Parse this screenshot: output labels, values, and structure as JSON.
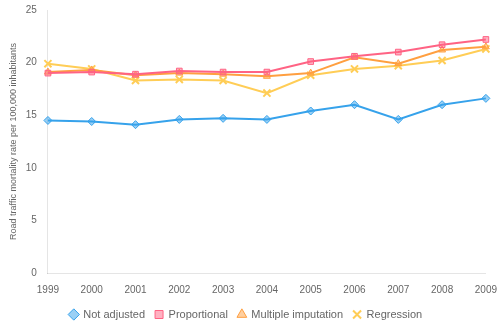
{
  "chart_data": {
    "type": "line",
    "categories": [
      1999,
      2000,
      2001,
      2002,
      2003,
      2004,
      2005,
      2006,
      2007,
      2008,
      2009
    ],
    "series": [
      {
        "name": "Not adjusted",
        "marker": "diamond",
        "values": [
          14.5,
          14.4,
          14.1,
          14.6,
          14.7,
          14.6,
          15.4,
          16.0,
          14.6,
          16.0,
          16.6
        ]
      },
      {
        "name": "Proportional",
        "marker": "square",
        "values": [
          19.0,
          19.1,
          18.9,
          19.2,
          19.1,
          19.1,
          20.1,
          20.6,
          21.0,
          21.7,
          22.2
        ]
      },
      {
        "name": "Multiple imputation",
        "marker": "triangle",
        "values": [
          19.1,
          19.3,
          18.8,
          19.0,
          18.9,
          18.7,
          19.0,
          20.5,
          19.9,
          21.2,
          21.5
        ]
      },
      {
        "name": "Regression",
        "marker": "x",
        "values": [
          19.9,
          19.4,
          18.3,
          18.4,
          18.3,
          17.1,
          18.8,
          19.4,
          19.7,
          20.2,
          21.3
        ]
      }
    ],
    "y_label": "Road traffic mortality rate per 100,000 inhabitants",
    "ylim": [
      0,
      25
    ],
    "yticks": [
      0,
      5,
      10,
      15,
      20,
      25
    ],
    "grid": false,
    "legend": "bottom"
  }
}
